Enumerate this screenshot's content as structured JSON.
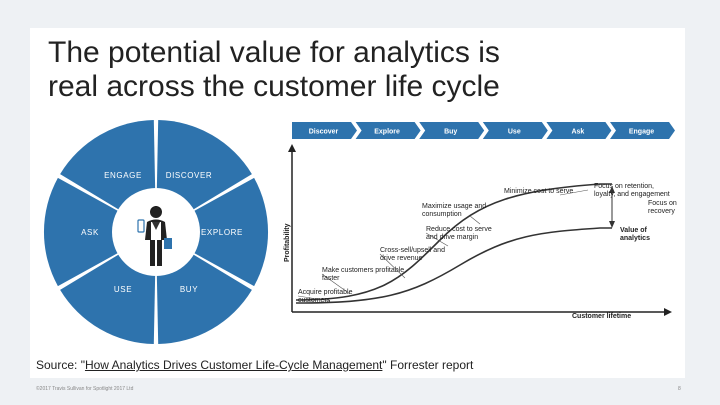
{
  "title": {
    "line1": "The potential value for analytics is",
    "line2": "real across the customer life cycle"
  },
  "wheel": {
    "segments": [
      "ENGAGE",
      "DISCOVER",
      "EXPLORE",
      "BUY",
      "USE",
      "ASK"
    ],
    "segment_color": "#2e73ad",
    "center_icon": "customer-figure-icon"
  },
  "stages": [
    "Discover",
    "Explore",
    "Buy",
    "Use",
    "Ask",
    "Engage"
  ],
  "stage_color": "#2e73ad",
  "axes": {
    "ylabel": "Profitability",
    "xlabel": "Customer lifetime"
  },
  "annotations": [
    "Acquire profitable customers",
    "Make customers profitable faster",
    "Cross-sell/upsell and drive revenue",
    "Reduce cost to serve and drive margin",
    "Maximize usage and consumption",
    "Minimize cost to serve",
    "Focus on retention, loyalty, and engagement",
    "Focus on recovery",
    "Value of analytics"
  ],
  "source": {
    "prefix": "Source: \"",
    "link": "How Analytics Drives Customer Life-Cycle Management",
    "suffix": "\" Forrester report"
  },
  "footer": {
    "left": "©2017 Travis Sullivan for Spotlight 2017 Ltd",
    "page": "8"
  }
}
